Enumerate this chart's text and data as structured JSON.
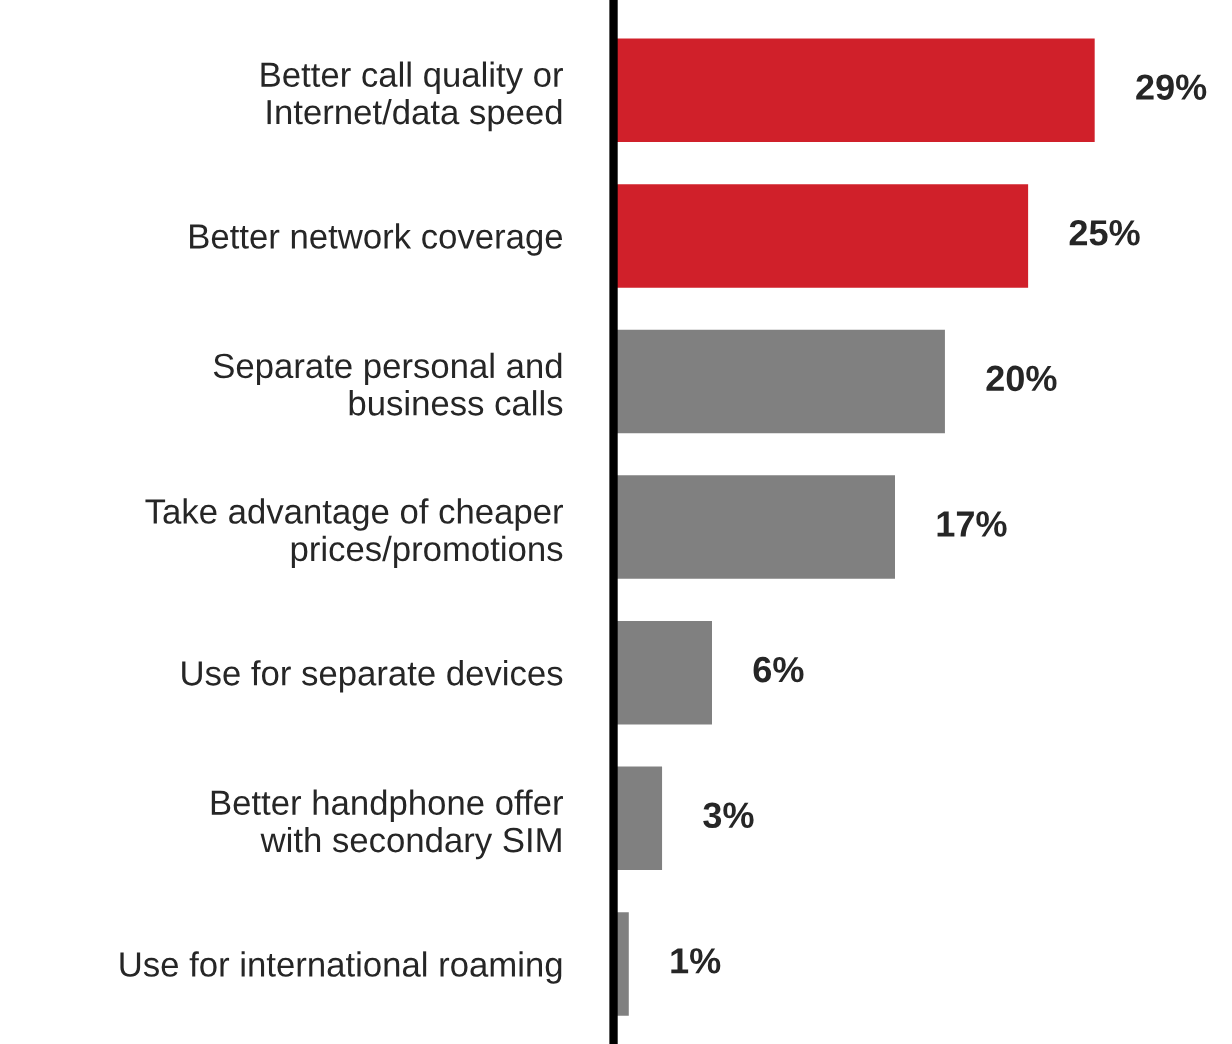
{
  "chart_data": {
    "type": "bar",
    "orientation": "horizontal",
    "categories": [
      "Better call quality or\nInternet/data speed",
      "Better network coverage",
      "Separate personal and\nbusiness calls",
      "Take advantage of cheaper\nprices/promotions",
      "Use for separate devices",
      "Better handphone offer\nwith secondary SIM",
      "Use for international roaming"
    ],
    "values": [
      29,
      25,
      20,
      17,
      6,
      3,
      1
    ],
    "colors": [
      "#d0202a",
      "#d0202a",
      "#808080",
      "#808080",
      "#808080",
      "#808080",
      "#808080"
    ],
    "value_labels": [
      "29%",
      "25%",
      "20%",
      "17%",
      "6%",
      "3%",
      "1%"
    ],
    "tick_labels": "y",
    "grid": false,
    "legend": false
  }
}
